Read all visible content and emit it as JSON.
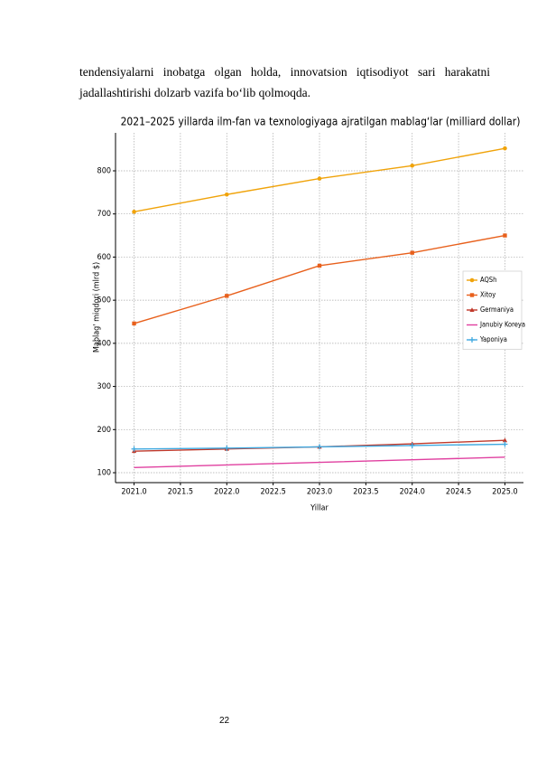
{
  "paragraph": {
    "lines": [
      "tendensiyalarni inobatga olgan holda, innovatsion iqtisodiyot sari harakatni",
      "jadallashtirishi dolzarb vazifa bo‘lib qolmoqda."
    ]
  },
  "chart_data": {
    "type": "line",
    "title": "2021–2025 yillarda ilm-fan va texnologiyaga ajratilgan mablag‘lar (milliard dollar)",
    "x_label": "Yillar",
    "y_label": "Mablag' miqdori (mlrd $)",
    "x": [
      2021,
      2022,
      2023,
      2024,
      2025
    ],
    "series": [
      {
        "name": "AQSh",
        "color": "#f0a30a",
        "marker": "circle",
        "values": [
          705,
          745,
          782,
          812,
          852
        ]
      },
      {
        "name": "Xitoy",
        "color": "#e8601c",
        "marker": "square",
        "values": [
          446,
          510,
          580,
          610,
          650
        ]
      },
      {
        "name": "Germaniya",
        "color": "#c0392b",
        "marker": "triangle",
        "values": [
          150,
          155,
          160,
          167,
          175
        ]
      },
      {
        "name": "Janubiy Koreya",
        "color": "#e040a0",
        "marker": "none",
        "values": [
          112,
          118,
          124,
          130,
          136
        ]
      },
      {
        "name": "Yaponiya",
        "color": "#3fa9e0",
        "marker": "plus",
        "values": [
          155,
          157,
          160,
          163,
          166
        ]
      }
    ],
    "xlim": [
      2020.8,
      2025.2
    ],
    "xticks": [
      {
        "value": 2021,
        "label": "2021.0"
      },
      2021.5,
      {
        "value": 2022,
        "label": "2022.0"
      },
      2022.5,
      {
        "value": 2023,
        "label": "2023.0"
      },
      2023.5,
      {
        "value": 2024,
        "label": "2024.0"
      },
      2024.5,
      {
        "value": 2025,
        "label": "2025.0"
      }
    ],
    "ylim": [
      77,
      888
    ],
    "yticks": [
      100,
      200,
      300,
      400,
      500,
      600,
      700,
      800
    ],
    "grid": true,
    "legend": "right"
  },
  "page_number": "22"
}
